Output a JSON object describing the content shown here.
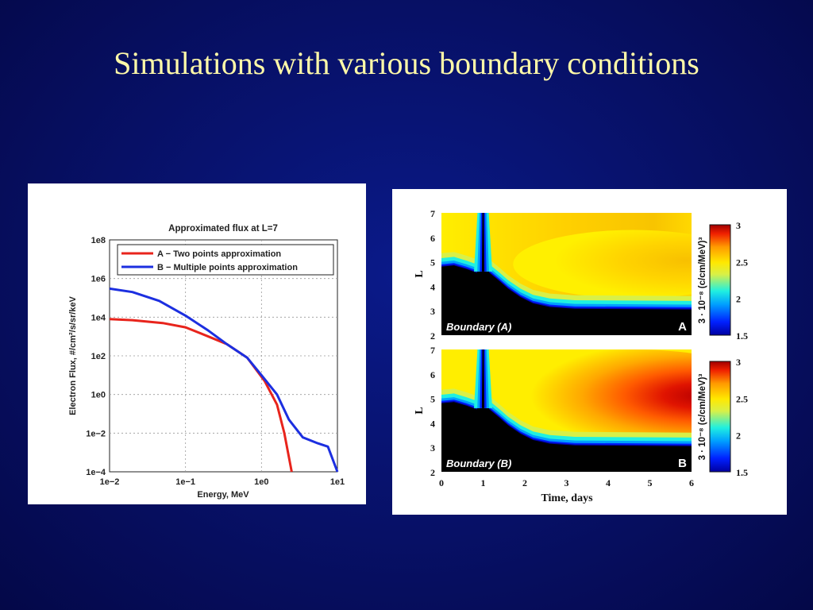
{
  "slide": {
    "title": "Simulations with various boundary conditions"
  },
  "colors": {
    "background": "#071066",
    "title": "#fff9a8",
    "series_a": "#e8241c",
    "series_b": "#1c2fe0"
  },
  "chart_data": [
    {
      "type": "line",
      "title": "Approximated flux at L=7",
      "xlabel": "Energy, MeV",
      "ylabel": "Electron Flux, #/cm²/s/sr/keV",
      "xscale": "log",
      "yscale": "log",
      "xlim": [
        0.01,
        10
      ],
      "ylim": [
        0.0001,
        100000000
      ],
      "xticks": [
        "1e−2",
        "1e−1",
        "1e0",
        "1e1"
      ],
      "yticks": [
        "1e−4",
        "1e−2",
        "1e0",
        "1e2",
        "1e4",
        "1e6",
        "1e8"
      ],
      "grid": true,
      "legend": "top-right",
      "series": [
        {
          "name": "A − Two points approximation",
          "color": "#e8241c",
          "x": [
            0.01,
            0.02,
            0.05,
            0.1,
            0.2,
            0.35,
            0.65,
            1.1,
            1.6,
            2.0,
            2.5
          ],
          "y": [
            8000,
            7000,
            5000,
            3000,
            1000,
            400,
            80,
            5,
            0.3,
            0.01,
            0.0001
          ]
        },
        {
          "name": "B − Multiple points approximation",
          "color": "#1c2fe0",
          "x": [
            0.01,
            0.02,
            0.045,
            0.1,
            0.2,
            0.35,
            0.65,
            1.0,
            1.6,
            2.3,
            3.5,
            5.5,
            7.5,
            10.0
          ],
          "y": [
            300000,
            200000,
            70000,
            12000,
            2000,
            400,
            80,
            10,
            1,
            0.05,
            0.006,
            0.003,
            0.002,
            0.0001
          ]
        }
      ]
    },
    {
      "type": "heatmap",
      "panels": [
        {
          "label": "Boundary (A)",
          "letter": "A",
          "max_level": 2.62
        },
        {
          "label": "Boundary (B)",
          "letter": "B",
          "max_level": 2.96
        }
      ],
      "xlabel": "Time, days",
      "ylabel": "L",
      "xlim": [
        0,
        6
      ],
      "ylim": [
        2,
        7
      ],
      "xticks": [
        "0",
        "1",
        "2",
        "3",
        "4",
        "5",
        "6"
      ],
      "yticks": [
        "2",
        "3",
        "4",
        "5",
        "6",
        "7"
      ],
      "colorbar": {
        "label": "3 · 10⁻⁸ (c/cm/MeV)³",
        "ticks": [
          "3",
          "2.5",
          "2",
          "1.5"
        ],
        "range": [
          1.5,
          3
        ]
      }
    }
  ]
}
